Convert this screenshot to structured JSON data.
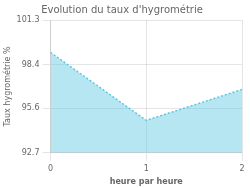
{
  "chart_data": {
    "type": "area",
    "title": "Evolution du taux d'hygrométrie",
    "xlabel": "heure par heure",
    "ylabel": "Taux hygrométrie %",
    "x": [
      0,
      1,
      2
    ],
    "values": [
      99.2,
      94.8,
      96.8
    ],
    "color": "#5bc8e0",
    "line_style": "dotted",
    "xlim": [
      0,
      2
    ],
    "xticks": [
      0,
      1,
      2
    ],
    "ylim": [
      92.7,
      101.3
    ],
    "yticks": [
      92.7,
      95.6,
      98.4,
      101.3
    ],
    "grid": true
  }
}
